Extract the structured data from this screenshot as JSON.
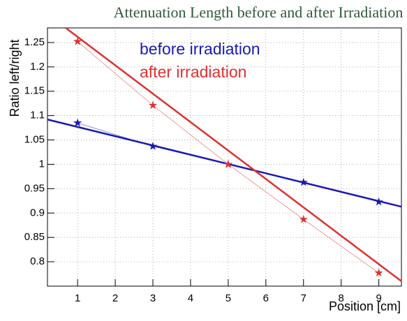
{
  "chart_data": {
    "type": "line",
    "title": "Attenuation Length before and after Irradiation",
    "xlabel": "Position [cm]",
    "ylabel": "Ratio left/right",
    "x": [
      1,
      3,
      5,
      7,
      9
    ],
    "series": [
      {
        "name": "before irradiation",
        "color": "#1a1ab4",
        "values": [
          1.085,
          1.037,
          1.0,
          0.963,
          0.923
        ],
        "fit": {
          "x": [
            0.2,
            9.6
          ],
          "values": [
            1.092,
            0.913
          ]
        }
      },
      {
        "name": "after irradiation",
        "color": "#e03030",
        "values": [
          1.252,
          1.121,
          1.0,
          0.887,
          0.777
        ],
        "fit": {
          "x": [
            0.685,
            9.6
          ],
          "values": [
            1.28,
            0.76
          ]
        }
      }
    ],
    "xlim": [
      0.2,
      9.6
    ],
    "xticks": [
      1,
      2,
      3,
      4,
      5,
      6,
      7,
      8,
      9
    ],
    "ylim": [
      0.75,
      1.28
    ],
    "yticks": [
      0.8,
      0.85,
      0.9,
      0.95,
      1,
      1.05,
      1.1,
      1.15,
      1.2,
      1.25
    ],
    "grid": true
  }
}
